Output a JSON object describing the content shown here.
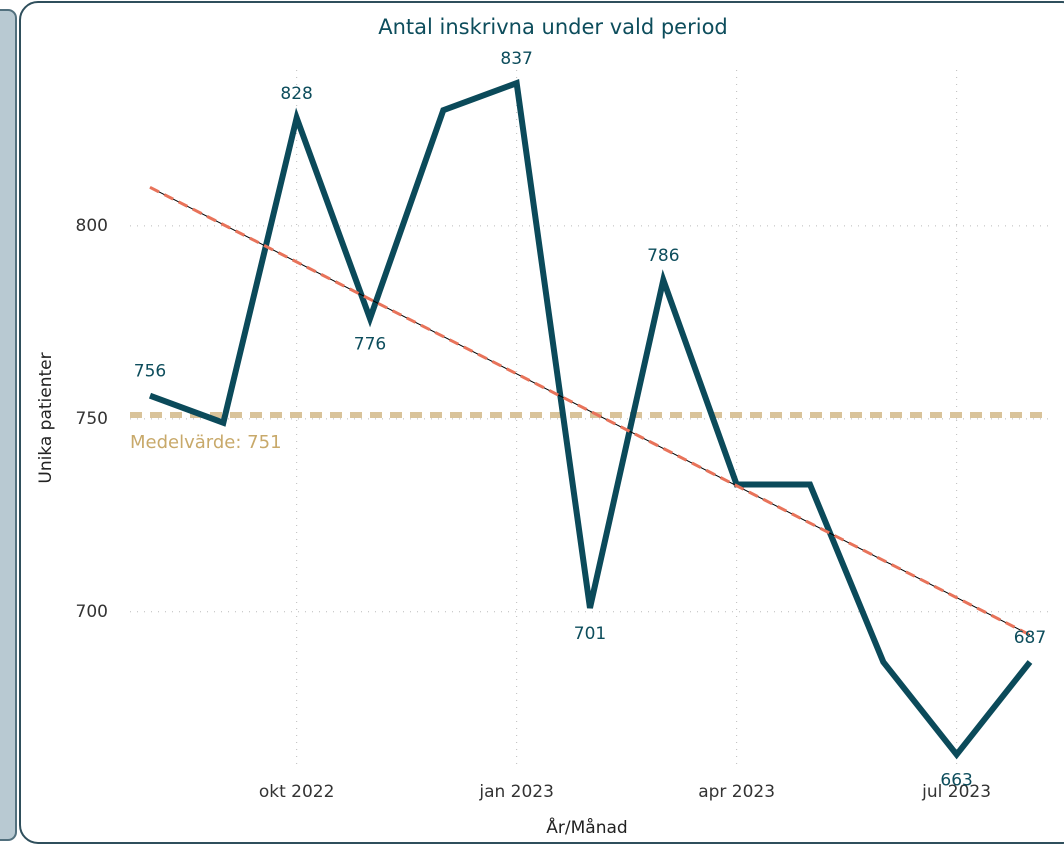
{
  "chart_data": {
    "type": "line",
    "title": "Antal inskrivna under vald period",
    "x_label": "År/Månad",
    "y_label": "Unika patienter",
    "categories": [
      null,
      null,
      "okt 2022",
      null,
      null,
      "jan 2023",
      null,
      null,
      "apr 2023",
      null,
      null,
      "jul 2023",
      null
    ],
    "series": [
      {
        "name": "Unika patienter",
        "color": "#0b4a5a",
        "values": [
          756,
          749,
          828,
          776,
          830,
          837,
          701,
          786,
          733,
          733,
          687,
          663,
          687
        ],
        "value_labels": [
          "756",
          null,
          "828",
          "776",
          null,
          "837",
          "701",
          "786",
          null,
          null,
          null,
          "663",
          "687"
        ]
      }
    ],
    "trend": {
      "color": "#e8735a",
      "values": [
        810,
        694
      ]
    },
    "average": {
      "value": 751,
      "label": "Medelvärde: 751",
      "color": "#d9c39a"
    },
    "ylim": [
      659,
      843
    ],
    "yticks": [
      700,
      750,
      800
    ],
    "grid": true
  }
}
